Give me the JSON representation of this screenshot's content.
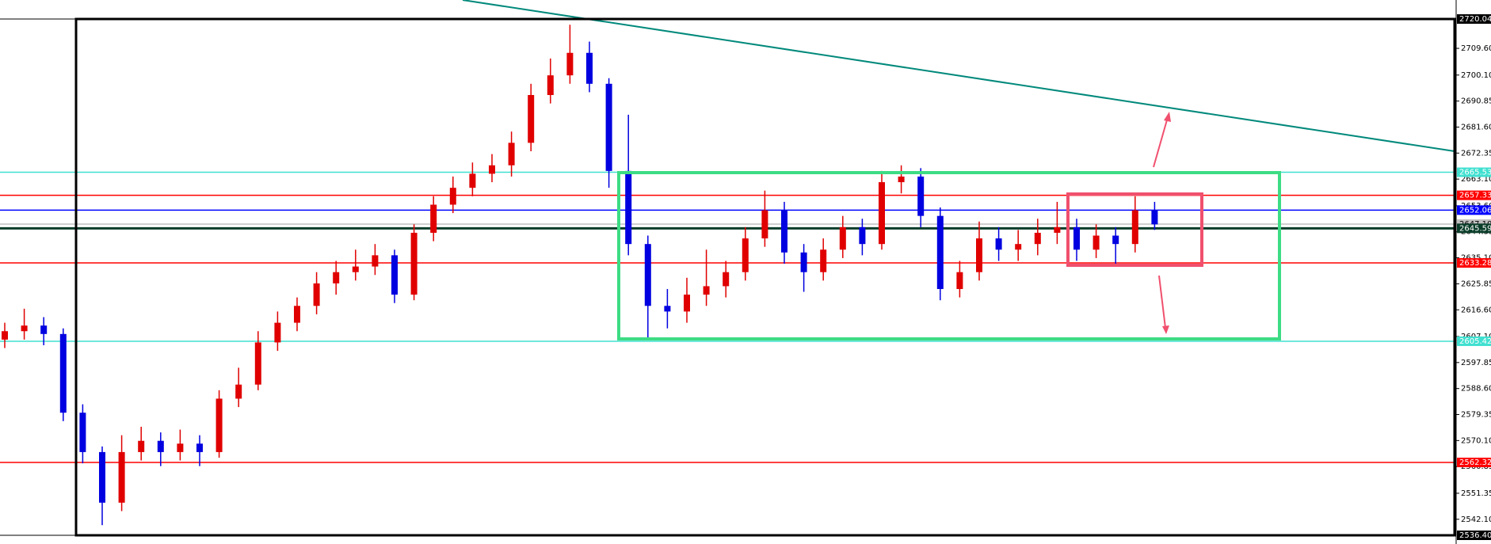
{
  "chart_data": {
    "type": "candlestick",
    "ylim": [
      2536.4,
      2720.04
    ],
    "yticks": [
      {
        "value": 2709.6,
        "label": "2709.60"
      },
      {
        "value": 2700.1,
        "label": "2700.10"
      },
      {
        "value": 2690.85,
        "label": "2690.85"
      },
      {
        "value": 2681.6,
        "label": "2681.60"
      },
      {
        "value": 2672.35,
        "label": "2672.35"
      },
      {
        "value": 2663.1,
        "label": "2663.10"
      },
      {
        "value": 2653.6,
        "label": "2653.60"
      },
      {
        "value": 2644.35,
        "label": "2644.35"
      },
      {
        "value": 2635.1,
        "label": "2635.10"
      },
      {
        "value": 2625.85,
        "label": "2625.85"
      },
      {
        "value": 2616.6,
        "label": "2616.60"
      },
      {
        "value": 2607.1,
        "label": "2607.10"
      },
      {
        "value": 2597.85,
        "label": "2597.85"
      },
      {
        "value": 2588.6,
        "label": "2588.60"
      },
      {
        "value": 2579.35,
        "label": "2579.35"
      },
      {
        "value": 2570.1,
        "label": "2570.10"
      },
      {
        "value": 2560.85,
        "label": "2560.85"
      },
      {
        "value": 2551.35,
        "label": "2551.35"
      },
      {
        "value": 2542.1,
        "label": "2542.10"
      }
    ],
    "levels": [
      {
        "value": 2720.04,
        "color": "#000000"
      },
      {
        "value": 2665.53,
        "color": "#40e0d0"
      },
      {
        "value": 2657.33,
        "color": "#ff0000"
      },
      {
        "value": 2652.06,
        "color": "#0000ff"
      },
      {
        "value": 2647.1,
        "label": "2647.10",
        "color": "#c0c0c0"
      },
      {
        "value": 2645.59,
        "color": "#0a3d2a"
      },
      {
        "value": 2633.28,
        "color": "#ff0000"
      },
      {
        "value": 2605.42,
        "color": "#40e0d0"
      },
      {
        "value": 2562.32,
        "color": "#ff0000"
      },
      {
        "value": 2536.4,
        "label": "2536.40",
        "color": "#000000"
      }
    ],
    "up_color": "#e00000",
    "down_color": "#0000e0",
    "open": [
      2606,
      2609,
      2611,
      2608,
      2580,
      2566,
      2548,
      2566,
      2570,
      2566,
      2569,
      2566,
      2585,
      2590,
      2605,
      2612,
      2618,
      2626,
      2630,
      2632,
      2636,
      2622,
      2644,
      2654,
      2660,
      2665,
      2668,
      2676,
      2693,
      2700,
      2708,
      2697,
      2666,
      2640,
      2618,
      2616,
      2622,
      2625,
      2630,
      2642,
      2652,
      2637,
      2630,
      2638,
      2646,
      2640,
      2662,
      2664,
      2650,
      2624,
      2630,
      2642,
      2638,
      2640,
      2644,
      2646,
      2638,
      2643,
      2640,
      2652
    ],
    "high": [
      2612,
      2617,
      2614,
      2610,
      2583,
      2568,
      2572,
      2575,
      2573,
      2574,
      2572,
      2588,
      2596,
      2609,
      2616,
      2621,
      2630,
      2634,
      2638,
      2640,
      2638,
      2647,
      2657,
      2664,
      2669,
      2672,
      2680,
      2697,
      2706,
      2718,
      2712,
      2699,
      2686,
      2643,
      2624,
      2628,
      2638,
      2634,
      2646,
      2659,
      2655,
      2640,
      2642,
      2650,
      2649,
      2666,
      2668,
      2667,
      2653,
      2634,
      2648,
      2646,
      2645,
      2649,
      2655,
      2649,
      2647,
      2646,
      2657,
      2655
    ],
    "low": [
      2603,
      2606,
      2604,
      2577,
      2562,
      2540,
      2545,
      2563,
      2561,
      2563,
      2561,
      2564,
      2582,
      2588,
      2602,
      2609,
      2615,
      2622,
      2627,
      2629,
      2619,
      2620,
      2641,
      2651,
      2657,
      2662,
      2664,
      2673,
      2690,
      2697,
      2694,
      2660,
      2636,
      2606,
      2610,
      2612,
      2618,
      2621,
      2627,
      2639,
      2633,
      2623,
      2627,
      2635,
      2636,
      2638,
      2658,
      2646,
      2620,
      2621,
      2627,
      2634,
      2634,
      2636,
      2640,
      2634,
      2635,
      2633,
      2637,
      2645
    ],
    "close": [
      2609,
      2611,
      2608,
      2580,
      2566,
      2548,
      2566,
      2570,
      2566,
      2569,
      2566,
      2585,
      2590,
      2605,
      2612,
      2618,
      2626,
      2630,
      2632,
      2636,
      2622,
      2644,
      2654,
      2660,
      2665,
      2668,
      2676,
      2693,
      2700,
      2708,
      2697,
      2666,
      2640,
      2618,
      2616,
      2622,
      2625,
      2630,
      2642,
      2652,
      2637,
      2630,
      2638,
      2646,
      2640,
      2662,
      2664,
      2650,
      2624,
      2630,
      2642,
      2638,
      2640,
      2644,
      2646,
      2638,
      2643,
      2640,
      2652,
      2647
    ]
  }
}
